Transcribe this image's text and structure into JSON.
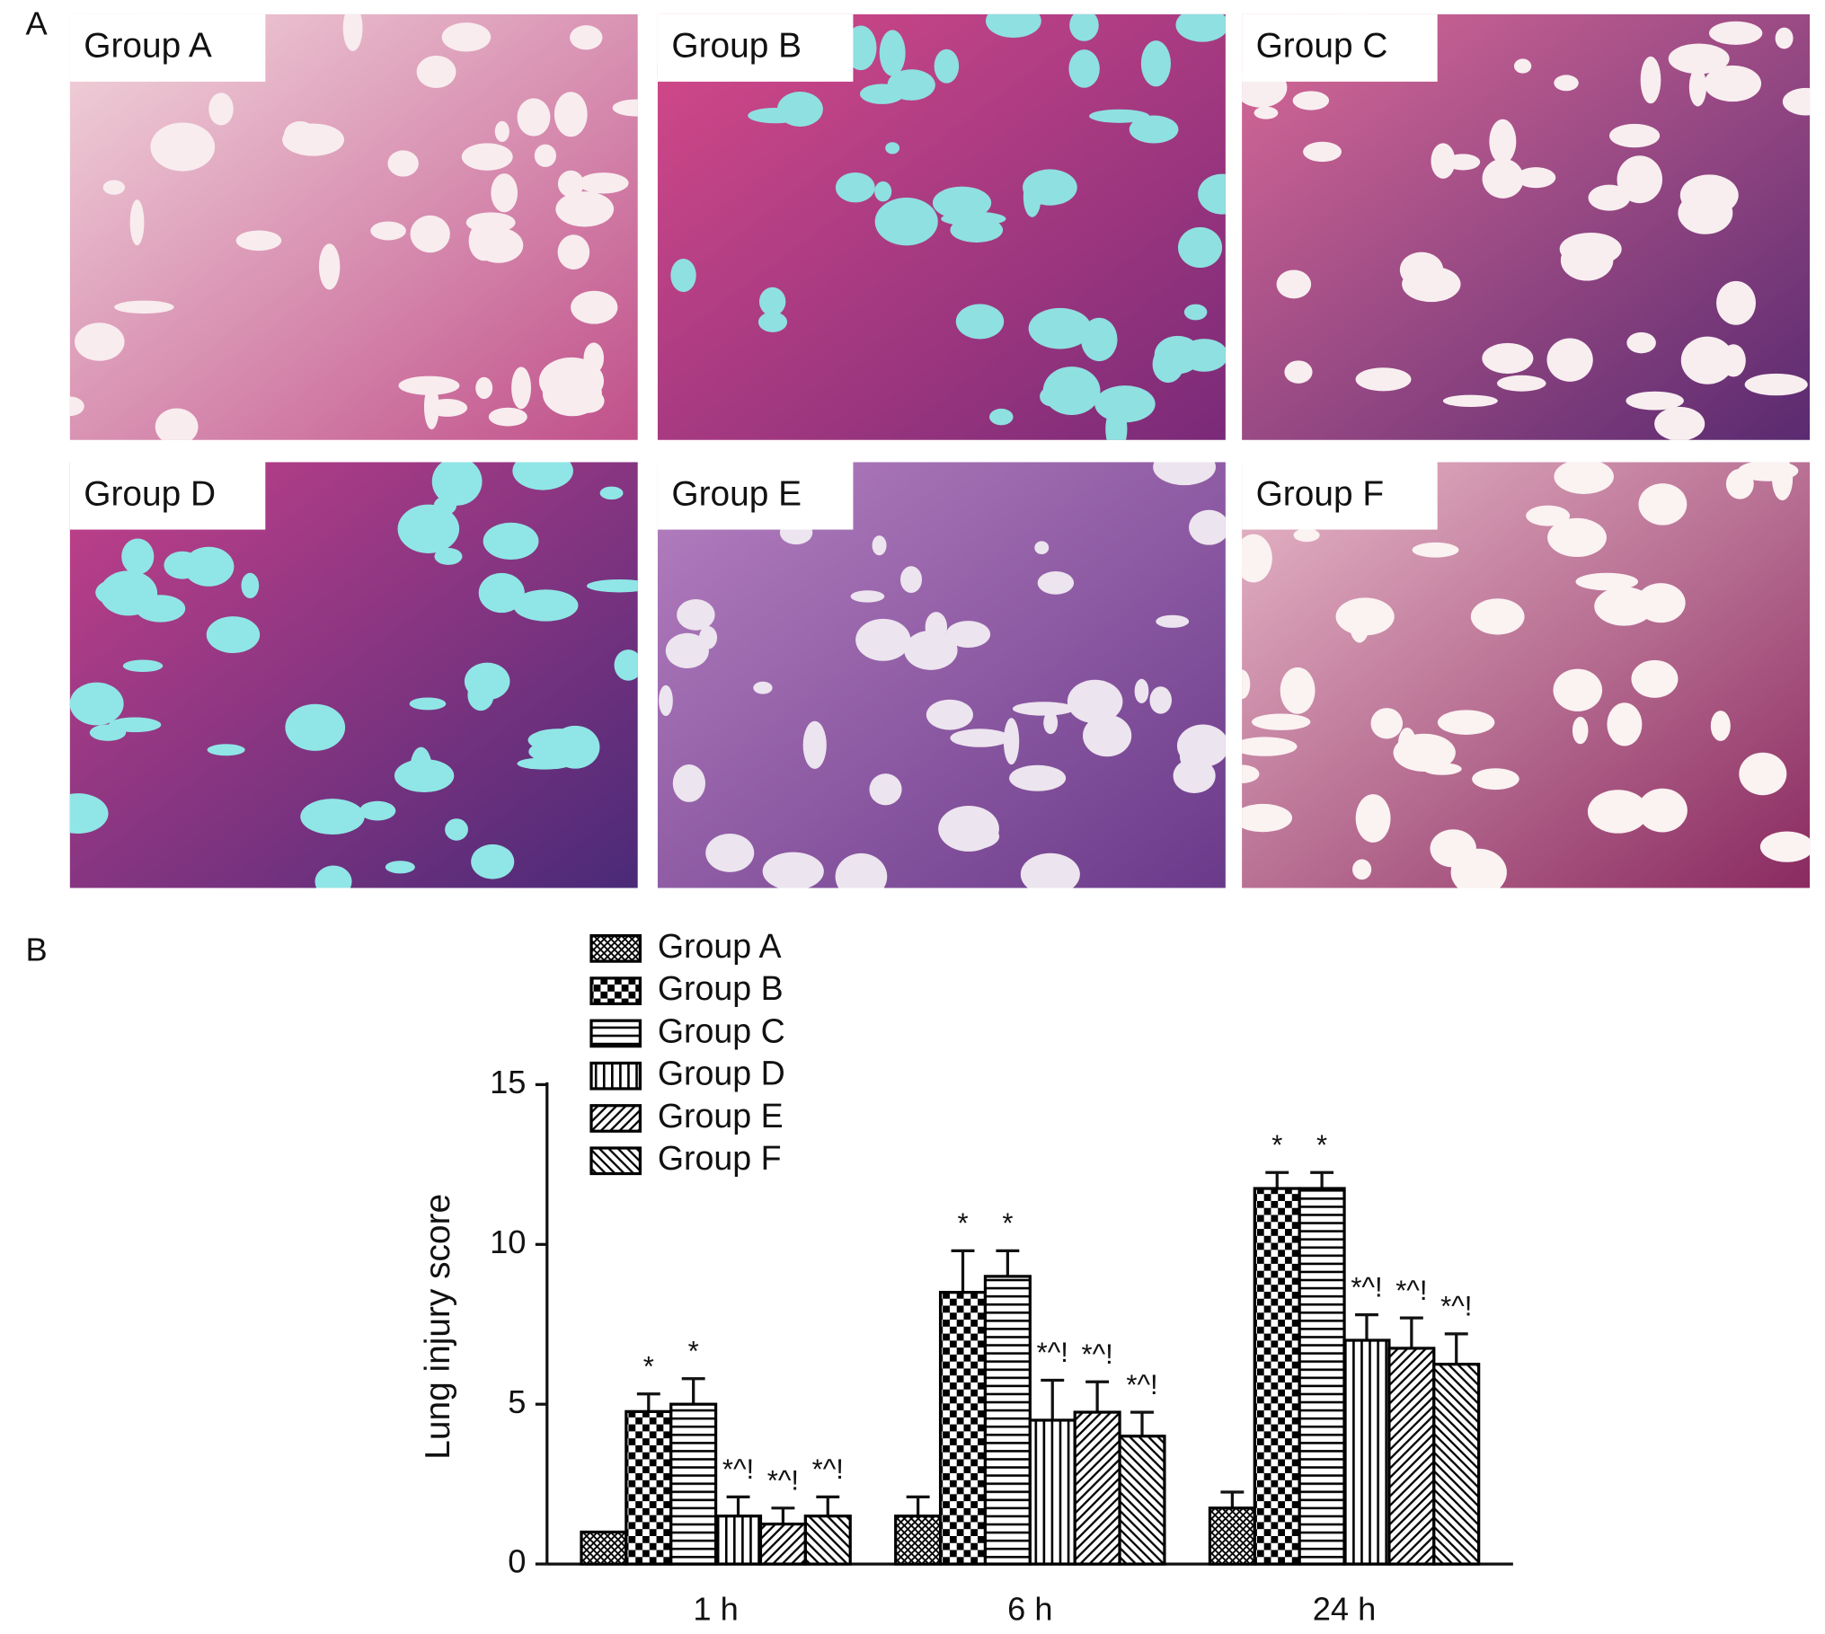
{
  "figure": {
    "panel_labels": [
      "A",
      "B"
    ],
    "micrographs": [
      "Group A",
      "Group B",
      "Group C",
      "Group D",
      "Group E",
      "Group F"
    ]
  },
  "chart_data": {
    "type": "bar",
    "y_label": "Lung injury score",
    "categories": [
      "1 h",
      "6 h",
      "24 h"
    ],
    "ylim": [
      0,
      15
    ],
    "yticks": [
      0,
      5,
      10,
      15
    ],
    "legend": "upper-left",
    "series": [
      {
        "name": "Group A",
        "color": "#000000",
        "pattern": "fine-grid",
        "values": [
          1.0,
          1.5,
          1.75
        ],
        "errors": [
          0,
          0.6,
          0.5
        ],
        "annotations": [
          null,
          null,
          null
        ]
      },
      {
        "name": "Group B",
        "color": "#000000",
        "pattern": "checker",
        "values": [
          4.77,
          8.5,
          11.75
        ],
        "errors": [
          0.55,
          1.3,
          0.5
        ],
        "annotations": [
          "*",
          "*",
          "*"
        ]
      },
      {
        "name": "Group C",
        "color": "#000000",
        "pattern": "horizontal",
        "values": [
          5.0,
          9.0,
          11.75
        ],
        "errors": [
          0.8,
          0.8,
          0.5
        ],
        "annotations": [
          "*",
          "*",
          "*"
        ]
      },
      {
        "name": "Group D",
        "color": "#000000",
        "pattern": "vertical",
        "values": [
          1.5,
          4.5,
          7.0
        ],
        "errors": [
          0.6,
          1.25,
          0.8
        ],
        "annotations": [
          "*^!",
          "*^!",
          "*^!"
        ]
      },
      {
        "name": "Group E",
        "color": "#000000",
        "pattern": "diagonal",
        "values": [
          1.25,
          4.75,
          6.75
        ],
        "errors": [
          0.5,
          0.95,
          0.95
        ],
        "annotations": [
          "*^!",
          "*^!",
          "*^!"
        ]
      },
      {
        "name": "Group F",
        "color": "#000000",
        "pattern": "antidiagonal",
        "values": [
          1.5,
          4.0,
          6.25
        ],
        "errors": [
          0.6,
          0.75,
          0.95
        ],
        "annotations": [
          "*^!",
          "*^!",
          "*^!"
        ]
      }
    ]
  }
}
